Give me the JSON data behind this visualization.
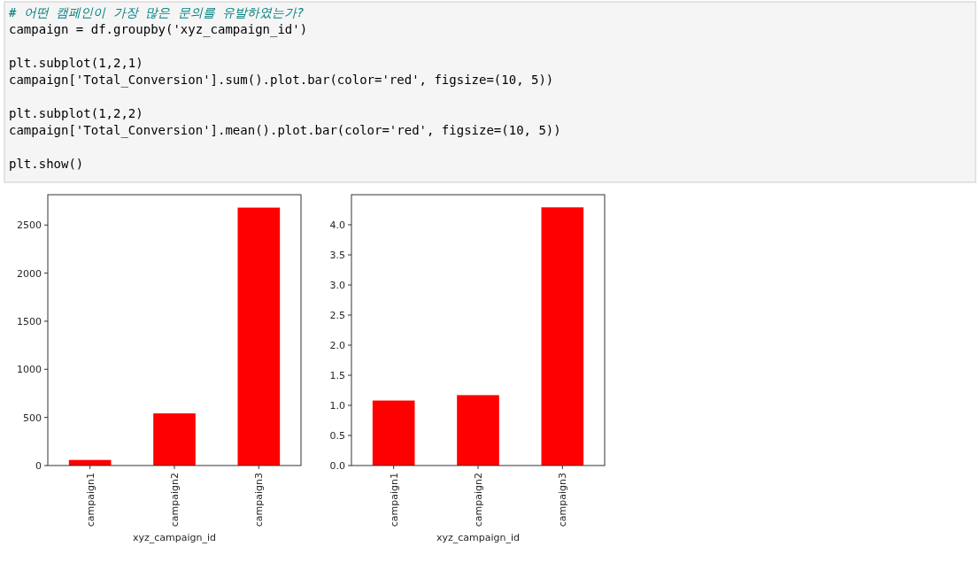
{
  "chart_data": [
    {
      "type": "bar",
      "xlabel": "xyz_campaign_id",
      "categories": [
        "campaign1",
        "campaign2",
        "campaign3"
      ],
      "values": [
        58,
        542,
        2681
      ],
      "color": "#ff0000",
      "ylim": [
        0,
        2815
      ],
      "yticks": [
        0,
        500,
        1000,
        1500,
        2000,
        2500
      ],
      "annotations": [
        "# 어떤 캠페인이 가장 많은 문의를 유발하였는가?",
        "campaign = df.groupby('xyz_campaign_id')",
        "plt.subplot(1,2,1)",
        "campaign['Total_Conversion'].sum().plot.bar(color='red', figsize=(10, 5))",
        "plt.subplot(1,2,2)",
        "campaign['Total_Conversion'].mean().plot.bar(color='red', figsize=(10, 5))",
        "plt.show()"
      ]
    },
    {
      "type": "bar",
      "xlabel": "xyz_campaign_id",
      "categories": [
        "campaign1",
        "campaign2",
        "campaign3"
      ],
      "values": [
        1.08,
        1.17,
        4.29
      ],
      "color": "#ff0000",
      "ylim": [
        0,
        4.5
      ],
      "yticks": [
        {
          "value": 0,
          "label": "0.0"
        },
        0.5,
        {
          "value": 1,
          "label": "1.0"
        },
        1.5,
        {
          "value": 2,
          "label": "2.0"
        },
        2.5,
        {
          "value": 3,
          "label": "3.0"
        },
        3.5,
        {
          "value": 4,
          "label": "4.0"
        }
      ]
    }
  ]
}
